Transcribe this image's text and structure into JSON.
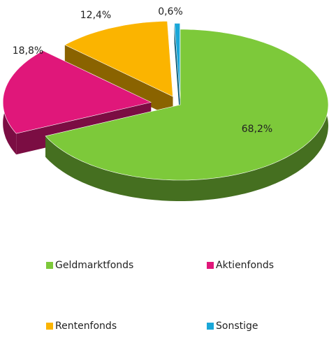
{
  "chart_data": {
    "type": "pie",
    "categories": [
      "Geldmarktfonds",
      "Aktienfonds",
      "Rentenfonds",
      "Sonstige"
    ],
    "values": [
      68.2,
      18.8,
      12.4,
      0.6
    ],
    "value_labels": [
      "68,2%",
      "18,8%",
      "12,4%",
      "0,6%"
    ],
    "colors": [
      "#7dc93a",
      "#e0177a",
      "#fbb400",
      "#1aa7d8"
    ],
    "legend": "bottom"
  }
}
